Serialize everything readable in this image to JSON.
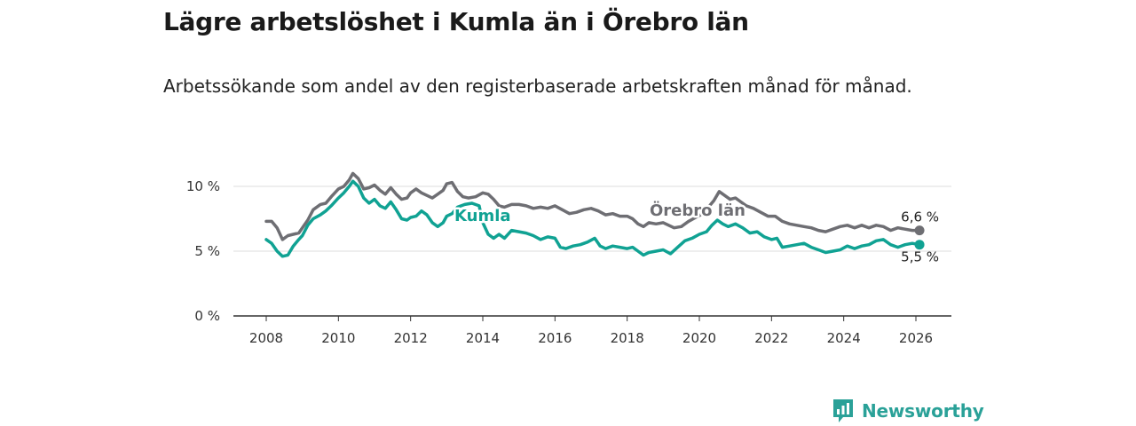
{
  "header": {
    "title": "Lägre arbetslöshet i Kumla än i Örebro län",
    "subtitle": "Arbetssökande som andel av den registerbaserade arbetskraften månad för månad."
  },
  "brand": {
    "name": "Newsworthy"
  },
  "chart_data": {
    "type": "line",
    "title": "Lägre arbetslöshet i Kumla än i Örebro län",
    "subtitle": "Arbetssökande som andel av den registerbaserade arbetskraften månad för månad.",
    "ylim": [
      0,
      10.5
    ],
    "yticks": [
      0,
      5,
      10
    ],
    "ytick_labels": [
      "0 %",
      "5 %",
      "10 %"
    ],
    "xlim": [
      2007.5,
      2026.7
    ],
    "xticks": [
      2008,
      2010,
      2012,
      2014,
      2016,
      2018,
      2020,
      2022,
      2024,
      2026
    ],
    "xtick_labels": [
      "2008",
      "2010",
      "2012",
      "2014",
      "2016",
      "2018",
      "2020",
      "2022",
      "2024",
      "2026"
    ],
    "grid": true,
    "series": [
      {
        "name": "Örebro län",
        "color": "#6e6e73",
        "label": "Örebro län",
        "end_label": "6,6 %",
        "points": [
          [
            2008.0,
            7.3
          ],
          [
            2008.15,
            7.3
          ],
          [
            2008.3,
            6.8
          ],
          [
            2008.45,
            5.9
          ],
          [
            2008.6,
            6.2
          ],
          [
            2008.75,
            6.3
          ],
          [
            2008.9,
            6.4
          ],
          [
            2009.0,
            6.8
          ],
          [
            2009.15,
            7.4
          ],
          [
            2009.3,
            8.2
          ],
          [
            2009.5,
            8.6
          ],
          [
            2009.65,
            8.7
          ],
          [
            2009.8,
            9.2
          ],
          [
            2010.0,
            9.8
          ],
          [
            2010.15,
            10.0
          ],
          [
            2010.3,
            10.5
          ],
          [
            2010.4,
            11.0
          ],
          [
            2010.55,
            10.6
          ],
          [
            2010.7,
            9.8
          ],
          [
            2010.85,
            9.9
          ],
          [
            2011.0,
            10.1
          ],
          [
            2011.15,
            9.7
          ],
          [
            2011.3,
            9.4
          ],
          [
            2011.45,
            9.9
          ],
          [
            2011.6,
            9.4
          ],
          [
            2011.75,
            9.0
          ],
          [
            2011.9,
            9.1
          ],
          [
            2012.0,
            9.5
          ],
          [
            2012.15,
            9.8
          ],
          [
            2012.3,
            9.5
          ],
          [
            2012.45,
            9.3
          ],
          [
            2012.6,
            9.1
          ],
          [
            2012.75,
            9.4
          ],
          [
            2012.9,
            9.7
          ],
          [
            2013.0,
            10.2
          ],
          [
            2013.15,
            10.3
          ],
          [
            2013.3,
            9.6
          ],
          [
            2013.45,
            9.2
          ],
          [
            2013.6,
            9.1
          ],
          [
            2013.8,
            9.2
          ],
          [
            2014.0,
            9.5
          ],
          [
            2014.15,
            9.4
          ],
          [
            2014.3,
            9.0
          ],
          [
            2014.45,
            8.5
          ],
          [
            2014.6,
            8.4
          ],
          [
            2014.8,
            8.6
          ],
          [
            2015.0,
            8.6
          ],
          [
            2015.2,
            8.5
          ],
          [
            2015.4,
            8.3
          ],
          [
            2015.6,
            8.4
          ],
          [
            2015.8,
            8.3
          ],
          [
            2016.0,
            8.5
          ],
          [
            2016.2,
            8.2
          ],
          [
            2016.4,
            7.9
          ],
          [
            2016.6,
            8.0
          ],
          [
            2016.8,
            8.2
          ],
          [
            2017.0,
            8.3
          ],
          [
            2017.2,
            8.1
          ],
          [
            2017.4,
            7.8
          ],
          [
            2017.6,
            7.9
          ],
          [
            2017.8,
            7.7
          ],
          [
            2018.0,
            7.7
          ],
          [
            2018.15,
            7.5
          ],
          [
            2018.3,
            7.1
          ],
          [
            2018.45,
            6.9
          ],
          [
            2018.6,
            7.2
          ],
          [
            2018.8,
            7.1
          ],
          [
            2019.0,
            7.2
          ],
          [
            2019.15,
            7.0
          ],
          [
            2019.3,
            6.8
          ],
          [
            2019.5,
            6.9
          ],
          [
            2019.7,
            7.3
          ],
          [
            2019.9,
            7.6
          ],
          [
            2020.1,
            7.9
          ],
          [
            2020.25,
            8.4
          ],
          [
            2020.4,
            8.9
          ],
          [
            2020.55,
            9.6
          ],
          [
            2020.7,
            9.3
          ],
          [
            2020.85,
            9.0
          ],
          [
            2021.0,
            9.1
          ],
          [
            2021.15,
            8.8
          ],
          [
            2021.3,
            8.5
          ],
          [
            2021.5,
            8.3
          ],
          [
            2021.7,
            8.0
          ],
          [
            2021.9,
            7.7
          ],
          [
            2022.1,
            7.7
          ],
          [
            2022.3,
            7.3
          ],
          [
            2022.5,
            7.1
          ],
          [
            2022.7,
            7.0
          ],
          [
            2022.9,
            6.9
          ],
          [
            2023.1,
            6.8
          ],
          [
            2023.3,
            6.6
          ],
          [
            2023.5,
            6.5
          ],
          [
            2023.7,
            6.7
          ],
          [
            2023.9,
            6.9
          ],
          [
            2024.1,
            7.0
          ],
          [
            2024.3,
            6.8
          ],
          [
            2024.5,
            7.0
          ],
          [
            2024.7,
            6.8
          ],
          [
            2024.9,
            7.0
          ],
          [
            2025.1,
            6.9
          ],
          [
            2025.3,
            6.6
          ],
          [
            2025.5,
            6.8
          ],
          [
            2025.7,
            6.7
          ],
          [
            2025.9,
            6.6
          ],
          [
            2026.1,
            6.6
          ]
        ]
      },
      {
        "name": "Kumla",
        "color": "#10a293",
        "label": "Kumla",
        "end_label": "5,5 %",
        "points": [
          [
            2008.0,
            5.9
          ],
          [
            2008.15,
            5.6
          ],
          [
            2008.3,
            5.0
          ],
          [
            2008.45,
            4.6
          ],
          [
            2008.6,
            4.7
          ],
          [
            2008.75,
            5.4
          ],
          [
            2008.9,
            5.9
          ],
          [
            2009.0,
            6.2
          ],
          [
            2009.15,
            7.0
          ],
          [
            2009.3,
            7.5
          ],
          [
            2009.5,
            7.8
          ],
          [
            2009.65,
            8.1
          ],
          [
            2009.8,
            8.5
          ],
          [
            2010.0,
            9.1
          ],
          [
            2010.15,
            9.5
          ],
          [
            2010.3,
            10.0
          ],
          [
            2010.4,
            10.4
          ],
          [
            2010.55,
            10.0
          ],
          [
            2010.7,
            9.1
          ],
          [
            2010.85,
            8.7
          ],
          [
            2011.0,
            9.0
          ],
          [
            2011.15,
            8.5
          ],
          [
            2011.3,
            8.3
          ],
          [
            2011.45,
            8.8
          ],
          [
            2011.6,
            8.2
          ],
          [
            2011.75,
            7.5
          ],
          [
            2011.9,
            7.4
          ],
          [
            2012.0,
            7.6
          ],
          [
            2012.15,
            7.7
          ],
          [
            2012.3,
            8.1
          ],
          [
            2012.45,
            7.8
          ],
          [
            2012.6,
            7.2
          ],
          [
            2012.75,
            6.9
          ],
          [
            2012.9,
            7.2
          ],
          [
            2013.0,
            7.7
          ],
          [
            2013.15,
            7.9
          ],
          [
            2013.3,
            8.4
          ],
          [
            2013.5,
            8.6
          ],
          [
            2013.7,
            8.7
          ],
          [
            2013.9,
            8.5
          ],
          [
            2014.0,
            7.2
          ],
          [
            2014.15,
            6.3
          ],
          [
            2014.3,
            6.0
          ],
          [
            2014.45,
            6.3
          ],
          [
            2014.6,
            6.0
          ],
          [
            2014.8,
            6.6
          ],
          [
            2015.0,
            6.5
          ],
          [
            2015.2,
            6.4
          ],
          [
            2015.4,
            6.2
          ],
          [
            2015.6,
            5.9
          ],
          [
            2015.8,
            6.1
          ],
          [
            2016.0,
            6.0
          ],
          [
            2016.15,
            5.3
          ],
          [
            2016.3,
            5.2
          ],
          [
            2016.5,
            5.4
          ],
          [
            2016.7,
            5.5
          ],
          [
            2016.9,
            5.7
          ],
          [
            2017.1,
            6.0
          ],
          [
            2017.25,
            5.4
          ],
          [
            2017.4,
            5.2
          ],
          [
            2017.6,
            5.4
          ],
          [
            2017.8,
            5.3
          ],
          [
            2018.0,
            5.2
          ],
          [
            2018.15,
            5.3
          ],
          [
            2018.3,
            5.0
          ],
          [
            2018.45,
            4.7
          ],
          [
            2018.6,
            4.9
          ],
          [
            2018.8,
            5.0
          ],
          [
            2019.0,
            5.1
          ],
          [
            2019.2,
            4.8
          ],
          [
            2019.4,
            5.3
          ],
          [
            2019.6,
            5.8
          ],
          [
            2019.8,
            6.0
          ],
          [
            2020.0,
            6.3
          ],
          [
            2020.2,
            6.5
          ],
          [
            2020.35,
            7.0
          ],
          [
            2020.5,
            7.4
          ],
          [
            2020.65,
            7.1
          ],
          [
            2020.8,
            6.9
          ],
          [
            2021.0,
            7.1
          ],
          [
            2021.2,
            6.8
          ],
          [
            2021.4,
            6.4
          ],
          [
            2021.6,
            6.5
          ],
          [
            2021.8,
            6.1
          ],
          [
            2022.0,
            5.9
          ],
          [
            2022.15,
            6.0
          ],
          [
            2022.3,
            5.3
          ],
          [
            2022.5,
            5.4
          ],
          [
            2022.7,
            5.5
          ],
          [
            2022.9,
            5.6
          ],
          [
            2023.1,
            5.3
          ],
          [
            2023.3,
            5.1
          ],
          [
            2023.5,
            4.9
          ],
          [
            2023.7,
            5.0
          ],
          [
            2023.9,
            5.1
          ],
          [
            2024.1,
            5.4
          ],
          [
            2024.3,
            5.2
          ],
          [
            2024.5,
            5.4
          ],
          [
            2024.7,
            5.5
          ],
          [
            2024.9,
            5.8
          ],
          [
            2025.1,
            5.9
          ],
          [
            2025.3,
            5.5
          ],
          [
            2025.5,
            5.3
          ],
          [
            2025.7,
            5.5
          ],
          [
            2025.9,
            5.6
          ],
          [
            2026.1,
            5.5
          ]
        ]
      }
    ]
  }
}
